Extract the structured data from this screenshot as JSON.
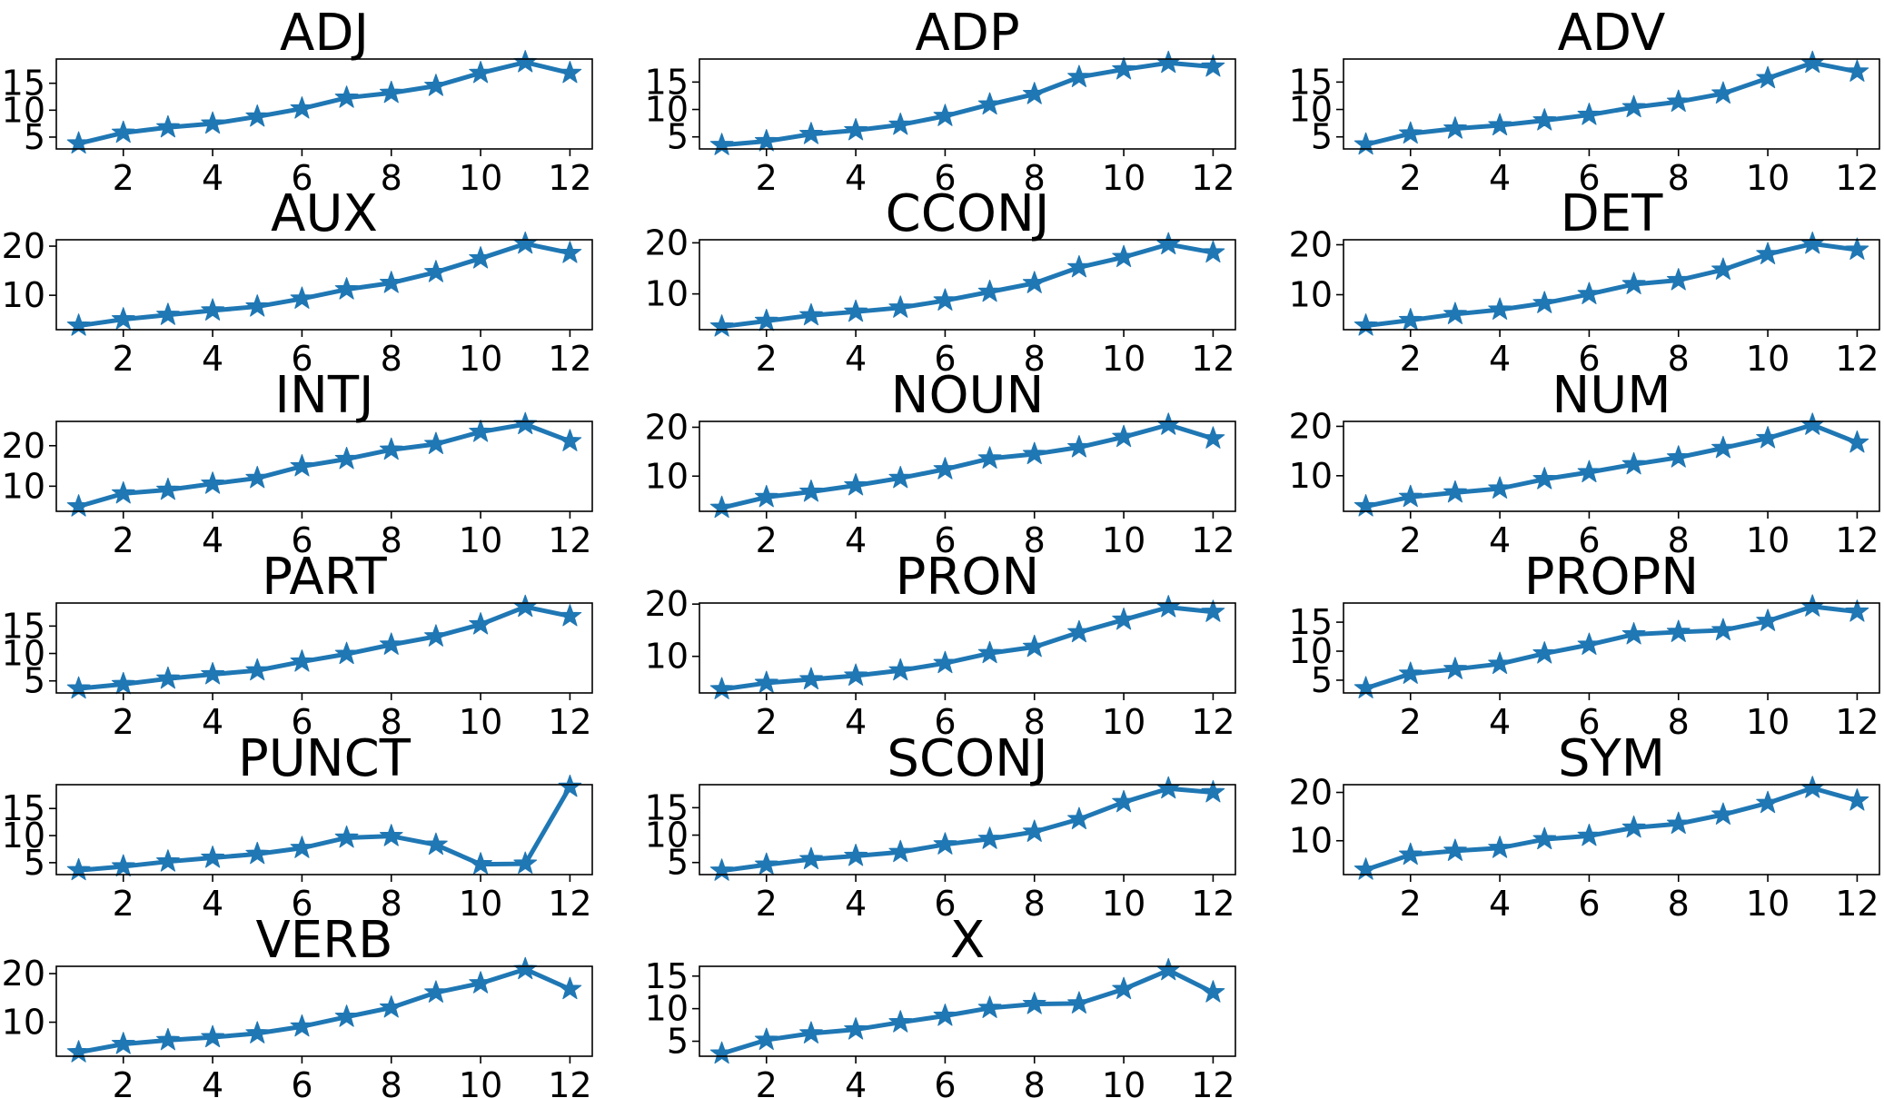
{
  "colors": {
    "series": "#1f77b4",
    "axes": "#000000",
    "background": "#ffffff"
  },
  "marker": "star",
  "chart_data": [
    {
      "type": "line",
      "title": "ADJ",
      "x": [
        1,
        2,
        3,
        4,
        5,
        6,
        7,
        8,
        9,
        10,
        11,
        12
      ],
      "y": [
        3.8,
        5.8,
        6.8,
        7.5,
        8.8,
        10.3,
        12.3,
        13.2,
        14.5,
        16.9,
        18.9,
        16.9
      ],
      "ylim": [
        2.8,
        19.5
      ],
      "yticks": [
        5,
        10,
        15
      ],
      "xlim": [
        0.5,
        12.5
      ],
      "xticks": [
        2,
        4,
        6,
        8,
        10,
        12
      ]
    },
    {
      "type": "line",
      "title": "ADP",
      "x": [
        1,
        2,
        3,
        4,
        5,
        6,
        7,
        8,
        9,
        10,
        11,
        12
      ],
      "y": [
        3.5,
        4.2,
        5.5,
        6.2,
        7.2,
        8.8,
        10.9,
        12.8,
        15.9,
        17.3,
        18.5,
        17.8
      ],
      "ylim": [
        2.8,
        19.2
      ],
      "yticks": [
        5,
        10,
        15
      ],
      "xlim": [
        0.5,
        12.5
      ],
      "xticks": [
        2,
        4,
        6,
        8,
        10,
        12
      ]
    },
    {
      "type": "line",
      "title": "ADV",
      "x": [
        1,
        2,
        3,
        4,
        5,
        6,
        7,
        8,
        9,
        10,
        11,
        12
      ],
      "y": [
        3.6,
        5.6,
        6.5,
        7.1,
        8.0,
        9.0,
        10.4,
        11.4,
        12.9,
        15.7,
        18.5,
        16.9
      ],
      "ylim": [
        2.8,
        19.2
      ],
      "yticks": [
        5,
        10,
        15
      ],
      "xlim": [
        0.5,
        12.5
      ],
      "xticks": [
        2,
        4,
        6,
        8,
        10,
        12
      ]
    },
    {
      "type": "line",
      "title": "AUX",
      "x": [
        1,
        2,
        3,
        4,
        5,
        6,
        7,
        8,
        9,
        10,
        11,
        12
      ],
      "y": [
        3.8,
        5.1,
        6.0,
        6.9,
        7.7,
        9.3,
        11.2,
        12.5,
        14.7,
        17.5,
        20.5,
        18.6
      ],
      "ylim": [
        3.0,
        21.3
      ],
      "yticks": [
        10,
        20
      ],
      "xlim": [
        0.5,
        12.5
      ],
      "xticks": [
        2,
        4,
        6,
        8,
        10,
        12
      ]
    },
    {
      "type": "line",
      "title": "CCONJ",
      "x": [
        1,
        2,
        3,
        4,
        5,
        6,
        7,
        8,
        9,
        10,
        11,
        12
      ],
      "y": [
        3.6,
        4.7,
        5.8,
        6.5,
        7.3,
        8.7,
        10.4,
        12.1,
        15.2,
        17.2,
        19.7,
        18.1
      ],
      "ylim": [
        3.0,
        20.6
      ],
      "yticks": [
        10,
        20
      ],
      "xlim": [
        0.5,
        12.5
      ],
      "xticks": [
        2,
        4,
        6,
        8,
        10,
        12
      ]
    },
    {
      "type": "line",
      "title": "DET",
      "x": [
        1,
        2,
        3,
        4,
        5,
        6,
        7,
        8,
        9,
        10,
        11,
        12
      ],
      "y": [
        3.8,
        4.9,
        6.1,
        7.0,
        8.3,
        10.1,
        12.1,
        12.9,
        15.0,
        18.1,
        20.2,
        19.0
      ],
      "ylim": [
        3.0,
        21.0
      ],
      "yticks": [
        10,
        20
      ],
      "xlim": [
        0.5,
        12.5
      ],
      "xticks": [
        2,
        4,
        6,
        8,
        10,
        12
      ]
    },
    {
      "type": "line",
      "title": "INTJ",
      "x": [
        1,
        2,
        3,
        4,
        5,
        6,
        7,
        8,
        9,
        10,
        11,
        12
      ],
      "y": [
        5.0,
        8.2,
        9.1,
        10.6,
        12.0,
        14.9,
        16.7,
        19.0,
        20.4,
        23.4,
        25.3,
        21.1
      ],
      "ylim": [
        3.8,
        26.0
      ],
      "yticks": [
        10,
        20
      ],
      "xlim": [
        0.5,
        12.5
      ],
      "xticks": [
        2,
        4,
        6,
        8,
        10,
        12
      ]
    },
    {
      "type": "line",
      "title": "NOUN",
      "x": [
        1,
        2,
        3,
        4,
        5,
        6,
        7,
        8,
        9,
        10,
        11,
        12
      ],
      "y": [
        3.5,
        5.7,
        6.8,
        8.1,
        9.6,
        11.4,
        13.6,
        14.5,
        15.9,
        18.0,
        20.5,
        17.7
      ],
      "ylim": [
        2.8,
        21.2
      ],
      "yticks": [
        10,
        20
      ],
      "xlim": [
        0.5,
        12.5
      ],
      "xticks": [
        2,
        4,
        6,
        8,
        10,
        12
      ]
    },
    {
      "type": "line",
      "title": "NUM",
      "x": [
        1,
        2,
        3,
        4,
        5,
        6,
        7,
        8,
        9,
        10,
        11,
        12
      ],
      "y": [
        3.8,
        5.7,
        6.6,
        7.4,
        9.3,
        10.7,
        12.3,
        13.7,
        15.6,
        17.6,
        20.3,
        16.7
      ],
      "ylim": [
        2.8,
        21.0
      ],
      "yticks": [
        10,
        20
      ],
      "xlim": [
        0.5,
        12.5
      ],
      "xticks": [
        2,
        4,
        6,
        8,
        10,
        12
      ]
    },
    {
      "type": "line",
      "title": "PART",
      "x": [
        1,
        2,
        3,
        4,
        5,
        6,
        7,
        8,
        9,
        10,
        11,
        12
      ],
      "y": [
        3.6,
        4.4,
        5.4,
        6.2,
        6.9,
        8.5,
        9.9,
        11.6,
        13.1,
        15.3,
        18.5,
        16.8
      ],
      "ylim": [
        2.8,
        19.2
      ],
      "yticks": [
        5,
        10,
        15
      ],
      "xlim": [
        0.5,
        12.5
      ],
      "xticks": [
        2,
        4,
        6,
        8,
        10,
        12
      ]
    },
    {
      "type": "line",
      "title": "PRON",
      "x": [
        1,
        2,
        3,
        4,
        5,
        6,
        7,
        8,
        9,
        10,
        11,
        12
      ],
      "y": [
        3.7,
        4.9,
        5.6,
        6.3,
        7.3,
        8.7,
        10.6,
        11.8,
        14.6,
        17.0,
        19.4,
        18.5
      ],
      "ylim": [
        3.0,
        20.2
      ],
      "yticks": [
        10,
        20
      ],
      "xlim": [
        0.5,
        12.5
      ],
      "xticks": [
        2,
        4,
        6,
        8,
        10,
        12
      ]
    },
    {
      "type": "line",
      "title": "PROPN",
      "x": [
        1,
        2,
        3,
        4,
        5,
        6,
        7,
        8,
        9,
        10,
        11,
        12
      ],
      "y": [
        3.6,
        6.1,
        6.9,
        7.8,
        9.6,
        11.1,
        12.9,
        13.3,
        13.6,
        15.2,
        17.7,
        16.8
      ],
      "ylim": [
        2.8,
        18.3
      ],
      "yticks": [
        5,
        10,
        15
      ],
      "xlim": [
        0.5,
        12.5
      ],
      "xticks": [
        2,
        4,
        6,
        8,
        10,
        12
      ]
    },
    {
      "type": "line",
      "title": "PUNCT",
      "x": [
        1,
        2,
        3,
        4,
        5,
        6,
        7,
        8,
        9,
        10,
        11,
        12
      ],
      "y": [
        3.6,
        4.3,
        5.2,
        5.9,
        6.6,
        7.7,
        9.6,
        9.9,
        8.3,
        4.7,
        4.8,
        19.0
      ],
      "ylim": [
        2.8,
        19.4
      ],
      "yticks": [
        5,
        10,
        15
      ],
      "xlim": [
        0.5,
        12.5
      ],
      "xticks": [
        2,
        4,
        6,
        8,
        10,
        12
      ]
    },
    {
      "type": "line",
      "title": "SCONJ",
      "x": [
        1,
        2,
        3,
        4,
        5,
        6,
        7,
        8,
        9,
        10,
        11,
        12
      ],
      "y": [
        3.5,
        4.6,
        5.6,
        6.2,
        6.9,
        8.3,
        9.3,
        10.6,
        12.9,
        16.0,
        18.5,
        17.8
      ],
      "ylim": [
        2.8,
        19.2
      ],
      "yticks": [
        5,
        10,
        15
      ],
      "xlim": [
        0.5,
        12.5
      ],
      "xticks": [
        2,
        4,
        6,
        8,
        10,
        12
      ]
    },
    {
      "type": "line",
      "title": "SYM",
      "x": [
        1,
        2,
        3,
        4,
        5,
        6,
        7,
        8,
        9,
        10,
        11,
        12
      ],
      "y": [
        4.0,
        7.1,
        7.9,
        8.5,
        10.3,
        11.0,
        12.7,
        13.5,
        15.4,
        17.8,
        20.9,
        18.3
      ],
      "ylim": [
        3.0,
        21.6
      ],
      "yticks": [
        10,
        20
      ],
      "xlim": [
        0.5,
        12.5
      ],
      "xticks": [
        2,
        4,
        6,
        8,
        10,
        12
      ]
    },
    {
      "type": "line",
      "title": "VERB",
      "x": [
        1,
        2,
        3,
        4,
        5,
        6,
        7,
        8,
        9,
        10,
        11,
        12
      ],
      "y": [
        3.8,
        5.5,
        6.3,
        6.9,
        7.7,
        9.1,
        11.1,
        13.0,
        16.1,
        18.0,
        20.9,
        16.8
      ],
      "ylim": [
        3.0,
        21.5
      ],
      "yticks": [
        10,
        20
      ],
      "xlim": [
        0.5,
        12.5
      ],
      "xticks": [
        2,
        4,
        6,
        8,
        10,
        12
      ]
    },
    {
      "type": "line",
      "title": "X",
      "x": [
        1,
        2,
        3,
        4,
        5,
        6,
        7,
        8,
        9,
        10,
        11,
        12
      ],
      "y": [
        3.1,
        5.2,
        6.2,
        6.8,
        7.9,
        8.9,
        10.1,
        10.7,
        10.8,
        13.0,
        15.9,
        12.5
      ],
      "ylim": [
        2.7,
        16.5
      ],
      "yticks": [
        5,
        10,
        15
      ],
      "xlim": [
        0.5,
        12.5
      ],
      "xticks": [
        2,
        4,
        6,
        8,
        10,
        12
      ]
    }
  ]
}
